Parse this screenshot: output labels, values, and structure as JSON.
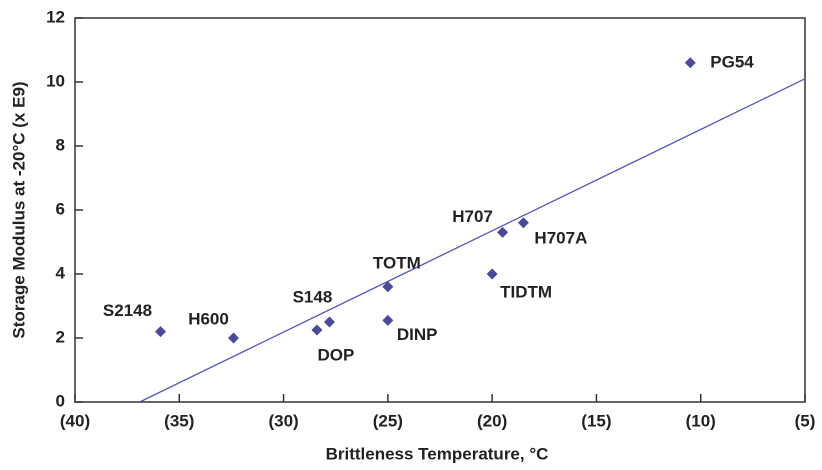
{
  "chart_data": {
    "type": "scatter",
    "x_label": "Brittleness Temperature, °C",
    "y_label": "Storage Modulus at -20°C (x E9)",
    "series": [
      {
        "color": "#4a4a96",
        "labels": [
          "S2148",
          "H600",
          "DOP",
          "S148",
          "TOTM",
          "DINP",
          "TIDTM",
          "H707",
          "H707A",
          "PG54"
        ],
        "x": [
          -35.9,
          -32.4,
          -28.4,
          -27.8,
          -25,
          -25,
          -20,
          -19.5,
          -18.5,
          -10.5
        ],
        "values": [
          2.2,
          2.0,
          2.25,
          2.5,
          3.6,
          2.55,
          4.0,
          5.3,
          5.6,
          10.6
        ]
      }
    ],
    "trendline": {
      "color": "#5555b5",
      "x": [
        -36.9,
        -5
      ],
      "y": [
        0,
        10.1
      ]
    },
    "xlim": [
      -40,
      -5
    ],
    "xticks": [
      {
        "value": -40,
        "label": "(40)"
      },
      {
        "value": -35,
        "label": "(35)"
      },
      {
        "value": -30,
        "label": "(30)"
      },
      {
        "value": -25,
        "label": "(25)"
      },
      {
        "value": -20,
        "label": "(20)"
      },
      {
        "value": -15,
        "label": "(15)"
      },
      {
        "value": -10,
        "label": "(10)"
      },
      {
        "value": -5,
        "label": "(5)"
      }
    ],
    "ylim": [
      0,
      12
    ],
    "yticks": [
      0,
      2,
      4,
      6,
      8,
      10,
      12
    ]
  }
}
